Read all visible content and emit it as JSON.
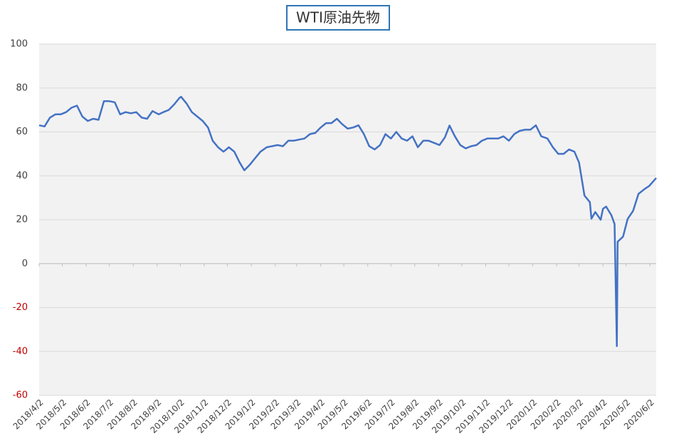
{
  "chart_data": {
    "type": "line",
    "title": "WTI原油先物",
    "x": [
      "2018/4/2",
      "2018/4/9",
      "2018/4/16",
      "2018/4/23",
      "2018/4/30",
      "2018/5/7",
      "2018/5/14",
      "2018/5/21",
      "2018/5/28",
      "2018/6/4",
      "2018/6/11",
      "2018/6/18",
      "2018/6/25",
      "2018/7/2",
      "2018/7/9",
      "2018/7/16",
      "2018/7/23",
      "2018/7/30",
      "2018/8/6",
      "2018/8/13",
      "2018/8/20",
      "2018/8/27",
      "2018/9/4",
      "2018/9/10",
      "2018/9/17",
      "2018/9/24",
      "2018/10/1",
      "2018/10/3",
      "2018/10/10",
      "2018/10/17",
      "2018/10/24",
      "2018/10/31",
      "2018/11/7",
      "2018/11/13",
      "2018/11/20",
      "2018/11/27",
      "2018/12/4",
      "2018/12/11",
      "2018/12/18",
      "2018/12/24",
      "2018/12/31",
      "2019/1/7",
      "2019/1/14",
      "2019/1/22",
      "2019/1/29",
      "2019/2/5",
      "2019/2/12",
      "2019/2/19",
      "2019/2/26",
      "2019/3/5",
      "2019/3/12",
      "2019/3/19",
      "2019/3/26",
      "2019/4/2",
      "2019/4/9",
      "2019/4/16",
      "2019/4/23",
      "2019/4/30",
      "2019/5/7",
      "2019/5/14",
      "2019/5/21",
      "2019/5/28",
      "2019/6/4",
      "2019/6/11",
      "2019/6/18",
      "2019/6/25",
      "2019/7/2",
      "2019/7/9",
      "2019/7/16",
      "2019/7/23",
      "2019/7/30",
      "2019/8/6",
      "2019/8/13",
      "2019/8/20",
      "2019/8/27",
      "2019/9/3",
      "2019/9/10",
      "2019/9/16",
      "2019/9/23",
      "2019/9/30",
      "2019/10/7",
      "2019/10/14",
      "2019/10/21",
      "2019/10/28",
      "2019/11/4",
      "2019/11/11",
      "2019/11/18",
      "2019/11/25",
      "2019/12/2",
      "2019/12/9",
      "2019/12/16",
      "2019/12/23",
      "2019/12/30",
      "2020/1/6",
      "2020/1/13",
      "2020/1/21",
      "2020/1/28",
      "2020/2/4",
      "2020/2/11",
      "2020/2/18",
      "2020/2/25",
      "2020/3/2",
      "2020/3/9",
      "2020/3/16",
      "2020/3/18",
      "2020/3/23",
      "2020/3/30",
      "2020/4/2",
      "2020/4/6",
      "2020/4/13",
      "2020/4/17",
      "2020/4/20",
      "2020/4/21",
      "2020/4/28",
      "2020/5/4",
      "2020/5/11",
      "2020/5/18",
      "2020/5/26",
      "2020/6/1",
      "2020/6/8",
      "2020/6/10"
    ],
    "series": [
      {
        "name": "WTI",
        "color": "#4472c4",
        "values": [
          63,
          62.5,
          66.5,
          68,
          68,
          69,
          71,
          72,
          67,
          65,
          66,
          65.5,
          74,
          74,
          73.5,
          68,
          69,
          68.5,
          69,
          66.5,
          66,
          69.5,
          68,
          69,
          70,
          72.5,
          75.5,
          76,
          73,
          69,
          67,
          65,
          62,
          56,
          53,
          51,
          53,
          51,
          46,
          42.5,
          45,
          48,
          51,
          53,
          53.5,
          54,
          53.5,
          56,
          56,
          56.5,
          57,
          59,
          59.5,
          62,
          64,
          64,
          66,
          63.5,
          61.5,
          62,
          63,
          59,
          53.5,
          52,
          54,
          59,
          57,
          60,
          57,
          56,
          58,
          53,
          56,
          56,
          55,
          54,
          57.5,
          62.9,
          58,
          54,
          52.5,
          53.5,
          54,
          56,
          57,
          57,
          57,
          58,
          56,
          59,
          60.5,
          61,
          61,
          63,
          58,
          57,
          53,
          50,
          50,
          52,
          51,
          46,
          31,
          28,
          20.5,
          23.5,
          20,
          25,
          26,
          22,
          18,
          -37.6,
          10,
          12.3,
          20.4,
          24,
          31.8,
          34,
          35.4,
          38.2,
          39
        ]
      }
    ],
    "xlim": [
      "2018/4/2",
      "2020/6/10"
    ],
    "xticks": [
      "2018/4/2",
      "2018/5/2",
      "2018/6/2",
      "2018/7/2",
      "2018/8/2",
      "2018/9/2",
      "2018/10/2",
      "2018/11/2",
      "2018/12/2",
      "2019/1/2",
      "2019/2/2",
      "2019/3/2",
      "2019/4/2",
      "2019/5/2",
      "2019/6/2",
      "2019/7/2",
      "2019/8/2",
      "2019/9/2",
      "2019/10/2",
      "2019/11/2",
      "2019/12/2",
      "2020/1/2",
      "2020/2/2",
      "2020/3/2",
      "2020/4/2",
      "2020/5/2",
      "2020/6/2"
    ],
    "ylim": [
      -60,
      100
    ],
    "yticks": [
      -60,
      -40,
      -20,
      0,
      20,
      40,
      60,
      80,
      100
    ],
    "grid": true
  }
}
